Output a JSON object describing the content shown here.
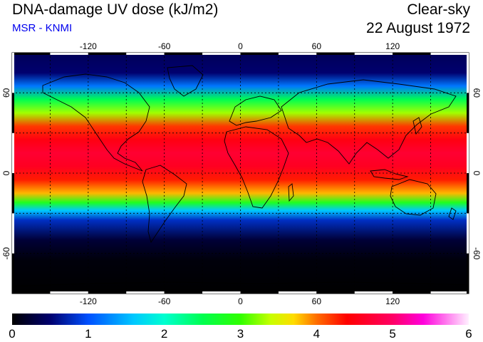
{
  "header": {
    "title": "DNA-damage UV dose (kJ/m2)",
    "source": "MSR - KNMI",
    "condition": "Clear-sky",
    "date": "22 August 1972"
  },
  "map": {
    "lon_ticks": [
      "-120",
      "-60",
      "0",
      "60",
      "120"
    ],
    "lat_ticks": [
      "60",
      "0",
      "-60"
    ],
    "lon_range": [
      -180,
      180
    ],
    "lat_range": [
      -90,
      90
    ],
    "grid": true,
    "gridline_lons": [
      -150,
      -120,
      -90,
      -60,
      -30,
      0,
      30,
      60,
      90,
      120,
      150
    ],
    "gridline_lats": [
      60,
      30,
      0,
      -30,
      -60
    ],
    "dose_by_latitude": [
      {
        "lat": 90,
        "dose": 0.4
      },
      {
        "lat": 75,
        "dose": 0.5
      },
      {
        "lat": 65,
        "dose": 1.2
      },
      {
        "lat": 55,
        "dose": 2.5
      },
      {
        "lat": 45,
        "dose": 3.3
      },
      {
        "lat": 35,
        "dose": 4.2
      },
      {
        "lat": 25,
        "dose": 4.5
      },
      {
        "lat": 15,
        "dose": 4.7
      },
      {
        "lat": 5,
        "dose": 4.6
      },
      {
        "lat": -5,
        "dose": 4.3
      },
      {
        "lat": -15,
        "dose": 3.8
      },
      {
        "lat": -22,
        "dose": 2.8
      },
      {
        "lat": -28,
        "dose": 1.6
      },
      {
        "lat": -35,
        "dose": 0.8
      },
      {
        "lat": -50,
        "dose": 0.25
      },
      {
        "lat": -65,
        "dose": 0.05
      },
      {
        "lat": -90,
        "dose": 0.0
      }
    ]
  },
  "colorbar": {
    "min": 0,
    "max": 6,
    "labels": [
      "0",
      "1",
      "2",
      "3",
      "4",
      "5",
      "6"
    ],
    "stops": [
      {
        "value": 0,
        "color": "#000000"
      },
      {
        "value": 0.5,
        "color": "#00006e"
      },
      {
        "value": 1.0,
        "color": "#0050ff"
      },
      {
        "value": 1.6,
        "color": "#00c8ff"
      },
      {
        "value": 2.0,
        "color": "#00ffd0"
      },
      {
        "value": 2.5,
        "color": "#00ff50"
      },
      {
        "value": 3.0,
        "color": "#30ff00"
      },
      {
        "value": 3.4,
        "color": "#c8ff00"
      },
      {
        "value": 3.7,
        "color": "#ffdc00"
      },
      {
        "value": 4.0,
        "color": "#ff6e00"
      },
      {
        "value": 4.4,
        "color": "#ff0000"
      },
      {
        "value": 5.0,
        "color": "#ff0064"
      },
      {
        "value": 5.4,
        "color": "#ff00dc"
      },
      {
        "value": 6.0,
        "color": "#fff0ff"
      }
    ]
  }
}
